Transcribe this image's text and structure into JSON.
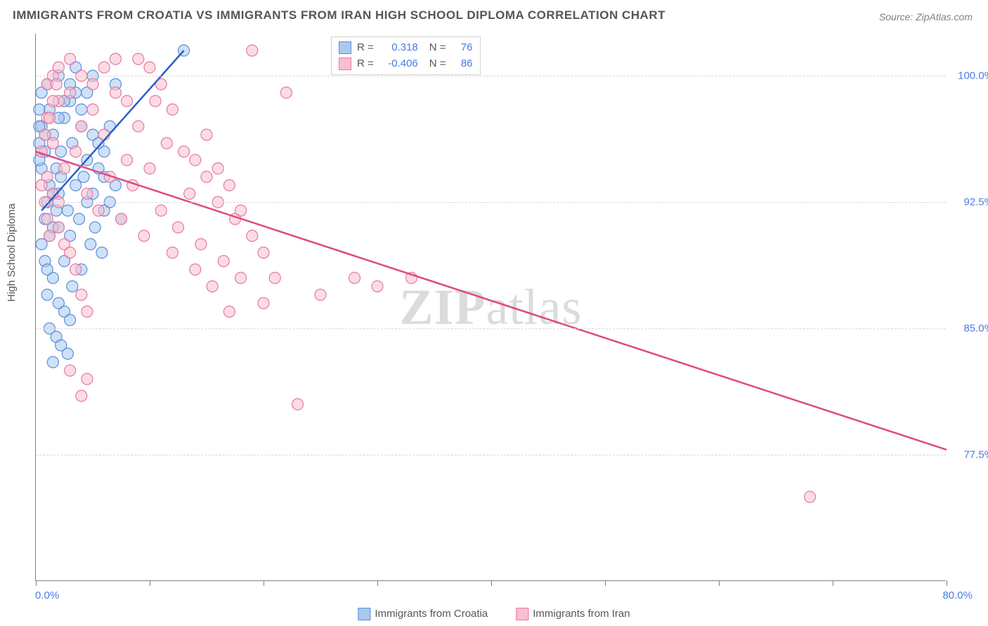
{
  "title": "IMMIGRANTS FROM CROATIA VS IMMIGRANTS FROM IRAN HIGH SCHOOL DIPLOMA CORRELATION CHART",
  "source": "Source: ZipAtlas.com",
  "watermark": "ZIPatlas",
  "chart": {
    "type": "scatter",
    "ylabel": "High School Diploma",
    "xlim": [
      0,
      80
    ],
    "ylim": [
      70,
      102.5
    ],
    "xtick_positions": [
      0,
      10,
      20,
      30,
      40,
      50,
      60,
      70,
      80
    ],
    "ytick_positions": [
      77.5,
      85.0,
      92.5,
      100.0
    ],
    "ytick_labels": [
      "77.5%",
      "85.0%",
      "92.5%",
      "100.0%"
    ],
    "xmin_label": "0.0%",
    "xmax_label": "80.0%",
    "grid_color": "#d8d8d8",
    "axis_color": "#808080",
    "background_color": "#ffffff",
    "marker_radius": 8,
    "marker_opacity": 0.55,
    "line_width": 2.5,
    "series": [
      {
        "name": "Immigrants from Croatia",
        "color_fill": "#a8c8f0",
        "color_stroke": "#5b8fd8",
        "line_color": "#2b5fc8",
        "R": "0.318",
        "N": "76",
        "trend": {
          "x1": 0.5,
          "y1": 92.0,
          "x2": 13.0,
          "y2": 101.5
        },
        "points": [
          [
            0.5,
            97.0
          ],
          [
            0.8,
            96.5
          ],
          [
            1.0,
            99.5
          ],
          [
            1.2,
            98.0
          ],
          [
            1.5,
            93.0
          ],
          [
            1.8,
            94.5
          ],
          [
            2.0,
            100.0
          ],
          [
            2.0,
            91.0
          ],
          [
            2.2,
            95.5
          ],
          [
            2.5,
            97.5
          ],
          [
            2.5,
            89.0
          ],
          [
            2.8,
            92.0
          ],
          [
            3.0,
            98.5
          ],
          [
            3.0,
            90.5
          ],
          [
            3.2,
            96.0
          ],
          [
            3.5,
            93.5
          ],
          [
            3.5,
            99.0
          ],
          [
            3.8,
            91.5
          ],
          [
            4.0,
            97.0
          ],
          [
            4.0,
            88.5
          ],
          [
            4.2,
            94.0
          ],
          [
            4.5,
            95.0
          ],
          [
            4.5,
            92.5
          ],
          [
            4.8,
            90.0
          ],
          [
            5.0,
            96.5
          ],
          [
            5.0,
            93.0
          ],
          [
            5.2,
            91.0
          ],
          [
            5.5,
            94.5
          ],
          [
            5.8,
            89.5
          ],
          [
            6.0,
            92.0
          ],
          [
            6.0,
            95.5
          ],
          [
            6.5,
            97.0
          ],
          [
            7.0,
            99.5
          ],
          [
            7.0,
            93.5
          ],
          [
            7.5,
            91.5
          ],
          [
            1.0,
            87.0
          ],
          [
            1.5,
            88.0
          ],
          [
            2.0,
            86.5
          ],
          [
            2.5,
            86.0
          ],
          [
            3.0,
            85.5
          ],
          [
            1.2,
            85.0
          ],
          [
            1.8,
            84.5
          ],
          [
            2.2,
            84.0
          ],
          [
            2.8,
            83.5
          ],
          [
            1.5,
            83.0
          ],
          [
            3.2,
            87.5
          ],
          [
            0.8,
            91.5
          ],
          [
            1.0,
            92.5
          ],
          [
            1.2,
            93.5
          ],
          [
            0.5,
            94.5
          ],
          [
            0.8,
            95.5
          ],
          [
            1.5,
            96.5
          ],
          [
            2.0,
            97.5
          ],
          [
            2.5,
            98.5
          ],
          [
            3.0,
            99.5
          ],
          [
            3.5,
            100.5
          ],
          [
            4.0,
            98.0
          ],
          [
            4.5,
            99.0
          ],
          [
            5.0,
            100.0
          ],
          [
            5.5,
            96.0
          ],
          [
            6.0,
            94.0
          ],
          [
            6.5,
            92.5
          ],
          [
            13.0,
            101.5
          ],
          [
            0.5,
            90.0
          ],
          [
            0.8,
            89.0
          ],
          [
            1.0,
            88.5
          ],
          [
            1.2,
            90.5
          ],
          [
            1.5,
            91.0
          ],
          [
            1.8,
            92.0
          ],
          [
            2.0,
            93.0
          ],
          [
            2.2,
            94.0
          ],
          [
            0.3,
            95.0
          ],
          [
            0.3,
            96.0
          ],
          [
            0.3,
            97.0
          ],
          [
            0.3,
            98.0
          ],
          [
            0.5,
            99.0
          ]
        ]
      },
      {
        "name": "Immigrants from Iran",
        "color_fill": "#f8c0d0",
        "color_stroke": "#e878a0",
        "line_color": "#e04888",
        "R": "-0.406",
        "N": "86",
        "trend": {
          "x1": 0.0,
          "y1": 95.5,
          "x2": 80.0,
          "y2": 77.8
        },
        "points": [
          [
            1.0,
            97.5
          ],
          [
            1.5,
            96.0
          ],
          [
            2.0,
            98.5
          ],
          [
            2.5,
            94.5
          ],
          [
            3.0,
            99.0
          ],
          [
            3.5,
            95.5
          ],
          [
            4.0,
            97.0
          ],
          [
            4.5,
            93.0
          ],
          [
            5.0,
            98.0
          ],
          [
            5.5,
            92.0
          ],
          [
            6.0,
            96.5
          ],
          [
            6.5,
            94.0
          ],
          [
            7.0,
            99.0
          ],
          [
            7.5,
            91.5
          ],
          [
            8.0,
            95.0
          ],
          [
            8.5,
            93.5
          ],
          [
            9.0,
            97.0
          ],
          [
            9.5,
            90.5
          ],
          [
            10.0,
            94.5
          ],
          [
            10.5,
            98.5
          ],
          [
            11.0,
            92.0
          ],
          [
            11.5,
            96.0
          ],
          [
            12.0,
            89.5
          ],
          [
            12.5,
            91.0
          ],
          [
            13.0,
            95.5
          ],
          [
            13.5,
            93.0
          ],
          [
            14.0,
            88.5
          ],
          [
            14.5,
            90.0
          ],
          [
            15.0,
            94.0
          ],
          [
            15.5,
            87.5
          ],
          [
            16.0,
            92.5
          ],
          [
            16.5,
            89.0
          ],
          [
            17.0,
            86.0
          ],
          [
            17.5,
            91.5
          ],
          [
            18.0,
            88.0
          ],
          [
            19.0,
            101.5
          ],
          [
            20.0,
            86.5
          ],
          [
            14.0,
            95.0
          ],
          [
            15.0,
            96.5
          ],
          [
            16.0,
            94.5
          ],
          [
            17.0,
            93.5
          ],
          [
            18.0,
            92.0
          ],
          [
            19.0,
            90.5
          ],
          [
            20.0,
            89.5
          ],
          [
            21.0,
            88.0
          ],
          [
            22.0,
            99.0
          ],
          [
            23.0,
            80.5
          ],
          [
            25.0,
            87.0
          ],
          [
            28.0,
            88.0
          ],
          [
            30.0,
            87.5
          ],
          [
            33.0,
            88.0
          ],
          [
            68.0,
            75.0
          ],
          [
            2.0,
            91.0
          ],
          [
            2.5,
            90.0
          ],
          [
            3.0,
            89.5
          ],
          [
            3.5,
            88.5
          ],
          [
            4.0,
            87.0
          ],
          [
            4.5,
            86.0
          ],
          [
            3.0,
            82.5
          ],
          [
            4.5,
            82.0
          ],
          [
            1.0,
            99.5
          ],
          [
            1.5,
            100.0
          ],
          [
            2.0,
            100.5
          ],
          [
            3.0,
            101.0
          ],
          [
            4.0,
            100.0
          ],
          [
            5.0,
            99.5
          ],
          [
            6.0,
            100.5
          ],
          [
            7.0,
            101.0
          ],
          [
            8.0,
            98.5
          ],
          [
            4.0,
            81.0
          ],
          [
            1.0,
            94.0
          ],
          [
            1.5,
            93.0
          ],
          [
            2.0,
            92.5
          ],
          [
            0.5,
            95.5
          ],
          [
            0.8,
            96.5
          ],
          [
            1.2,
            97.5
          ],
          [
            1.5,
            98.5
          ],
          [
            1.8,
            99.5
          ],
          [
            0.5,
            93.5
          ],
          [
            0.8,
            92.5
          ],
          [
            1.0,
            91.5
          ],
          [
            1.2,
            90.5
          ],
          [
            9.0,
            101.0
          ],
          [
            10.0,
            100.5
          ],
          [
            11.0,
            99.5
          ],
          [
            12.0,
            98.0
          ]
        ]
      }
    ]
  },
  "bottom_legend": [
    {
      "label": "Immigrants from Croatia",
      "fill": "#a8c8f0",
      "stroke": "#5b8fd8"
    },
    {
      "label": "Immigrants from Iran",
      "fill": "#f8c0d0",
      "stroke": "#e878a0"
    }
  ]
}
